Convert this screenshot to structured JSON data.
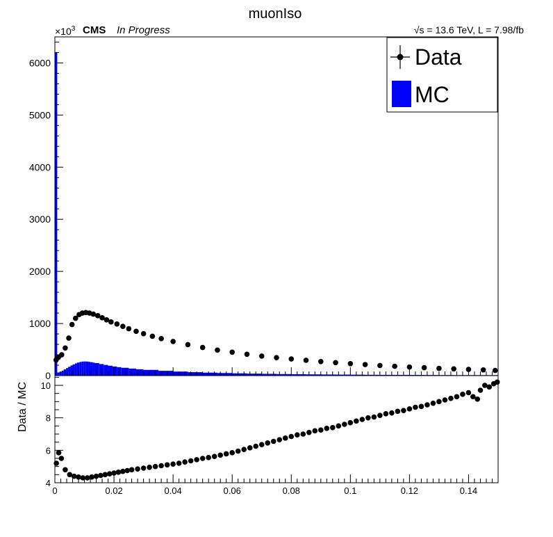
{
  "title": "muonIso",
  "header": {
    "exponent_base": "×10",
    "exponent_power": "3",
    "experiment": "CMS",
    "status": "In Progress",
    "lumi_text": "√s = 13.6 TeV, L = 7.98/fb"
  },
  "legend": {
    "entries": [
      {
        "label": "Data",
        "style": "marker",
        "color": "#000000"
      },
      {
        "label": "MC",
        "style": "fill",
        "color": "#0000ff"
      }
    ],
    "placement": "top-right"
  },
  "colors": {
    "data": "#000000",
    "mc": "#0000ff",
    "frame": "#000000"
  },
  "chart_data": [
    {
      "type": "bar",
      "panel": "main",
      "series_names": [
        "Data",
        "MC"
      ],
      "x_range": [
        0,
        0.15
      ],
      "ylim": [
        0,
        6500
      ],
      "y_scale_note": "×10^3",
      "y_ticks": [
        "0",
        "1000",
        "2000",
        "3000",
        "4000",
        "5000",
        "6000"
      ],
      "grid": false,
      "data_points": [
        [
          0.0004,
          300
        ],
        [
          0.0012,
          350
        ],
        [
          0.0023,
          400
        ],
        [
          0.0035,
          530
        ],
        [
          0.0047,
          720
        ],
        [
          0.0058,
          980
        ],
        [
          0.007,
          1100
        ],
        [
          0.0082,
          1170
        ],
        [
          0.0093,
          1200
        ],
        [
          0.0105,
          1210
        ],
        [
          0.0117,
          1200
        ],
        [
          0.013,
          1180
        ],
        [
          0.0145,
          1150
        ],
        [
          0.016,
          1110
        ],
        [
          0.0175,
          1070
        ],
        [
          0.019,
          1030
        ],
        [
          0.021,
          990
        ],
        [
          0.023,
          945
        ],
        [
          0.025,
          900
        ],
        [
          0.0275,
          850
        ],
        [
          0.03,
          805
        ],
        [
          0.033,
          755
        ],
        [
          0.036,
          710
        ],
        [
          0.04,
          655
        ],
        [
          0.045,
          595
        ],
        [
          0.05,
          540
        ],
        [
          0.055,
          490
        ],
        [
          0.06,
          450
        ],
        [
          0.065,
          410
        ],
        [
          0.07,
          375
        ],
        [
          0.075,
          345
        ],
        [
          0.08,
          320
        ],
        [
          0.085,
          295
        ],
        [
          0.09,
          270
        ],
        [
          0.095,
          250
        ],
        [
          0.1,
          230
        ],
        [
          0.105,
          212
        ],
        [
          0.11,
          195
        ],
        [
          0.115,
          180
        ],
        [
          0.12,
          165
        ],
        [
          0.125,
          152
        ],
        [
          0.13,
          140
        ],
        [
          0.135,
          130
        ],
        [
          0.14,
          120
        ],
        [
          0.145,
          110
        ],
        [
          0.149,
          100
        ]
      ],
      "mc_bins": [
        [
          0.0,
          6200
        ],
        [
          0.0008,
          60
        ],
        [
          0.0015,
          75
        ],
        [
          0.0023,
          95
        ],
        [
          0.003,
          120
        ],
        [
          0.0038,
          145
        ],
        [
          0.0045,
          170
        ],
        [
          0.0053,
          195
        ],
        [
          0.006,
          215
        ],
        [
          0.0068,
          235
        ],
        [
          0.0075,
          250
        ],
        [
          0.0083,
          262
        ],
        [
          0.009,
          270
        ],
        [
          0.0098,
          272
        ],
        [
          0.0105,
          270
        ],
        [
          0.0113,
          265
        ],
        [
          0.012,
          258
        ],
        [
          0.0128,
          250
        ],
        [
          0.0135,
          240
        ],
        [
          0.015,
          222
        ],
        [
          0.0165,
          205
        ],
        [
          0.018,
          190
        ],
        [
          0.0195,
          175
        ],
        [
          0.021,
          162
        ],
        [
          0.0225,
          150
        ],
        [
          0.025,
          135
        ],
        [
          0.0275,
          122
        ],
        [
          0.03,
          110
        ],
        [
          0.035,
          92
        ],
        [
          0.04,
          78
        ],
        [
          0.045,
          66
        ],
        [
          0.05,
          57
        ],
        [
          0.055,
          50
        ],
        [
          0.06,
          44
        ],
        [
          0.065,
          38
        ],
        [
          0.07,
          34
        ],
        [
          0.075,
          30
        ],
        [
          0.08,
          27
        ],
        [
          0.085,
          24
        ],
        [
          0.09,
          22
        ],
        [
          0.095,
          20
        ],
        [
          0.1,
          18
        ],
        [
          0.105,
          16
        ],
        [
          0.11,
          15
        ],
        [
          0.115,
          14
        ],
        [
          0.12,
          13
        ],
        [
          0.125,
          12
        ],
        [
          0.13,
          11
        ],
        [
          0.135,
          10
        ],
        [
          0.14,
          10
        ],
        [
          0.145,
          10
        ]
      ]
    },
    {
      "type": "scatter",
      "panel": "ratio",
      "ylabel": "Data / MC",
      "xlim": [
        0,
        0.15
      ],
      "ylim": [
        4,
        10.6
      ],
      "x_ticks": [
        "0",
        "0.02",
        "0.04",
        "0.06",
        "0.08",
        "0.1",
        "0.12",
        "0.14"
      ],
      "y_ticks": [
        "4",
        "6",
        "8",
        "10"
      ],
      "grid": false,
      "points": [
        [
          0.0005,
          5.2
        ],
        [
          0.0013,
          5.85
        ],
        [
          0.0022,
          5.5
        ],
        [
          0.0035,
          4.8
        ],
        [
          0.005,
          4.5
        ],
        [
          0.0065,
          4.4
        ],
        [
          0.008,
          4.35
        ],
        [
          0.0095,
          4.3
        ],
        [
          0.011,
          4.3
        ],
        [
          0.0125,
          4.35
        ],
        [
          0.014,
          4.4
        ],
        [
          0.0155,
          4.45
        ],
        [
          0.017,
          4.5
        ],
        [
          0.0185,
          4.55
        ],
        [
          0.02,
          4.6
        ],
        [
          0.0215,
          4.65
        ],
        [
          0.023,
          4.7
        ],
        [
          0.0245,
          4.75
        ],
        [
          0.026,
          4.8
        ],
        [
          0.028,
          4.85
        ],
        [
          0.03,
          4.9
        ],
        [
          0.032,
          4.95
        ],
        [
          0.034,
          5.0
        ],
        [
          0.036,
          5.05
        ],
        [
          0.038,
          5.1
        ],
        [
          0.04,
          5.15
        ],
        [
          0.042,
          5.2
        ],
        [
          0.044,
          5.28
        ],
        [
          0.046,
          5.35
        ],
        [
          0.048,
          5.42
        ],
        [
          0.05,
          5.5
        ],
        [
          0.052,
          5.55
        ],
        [
          0.054,
          5.62
        ],
        [
          0.056,
          5.7
        ],
        [
          0.058,
          5.78
        ],
        [
          0.06,
          5.85
        ],
        [
          0.062,
          5.95
        ],
        [
          0.064,
          6.05
        ],
        [
          0.066,
          6.15
        ],
        [
          0.068,
          6.25
        ],
        [
          0.07,
          6.35
        ],
        [
          0.072,
          6.45
        ],
        [
          0.074,
          6.55
        ],
        [
          0.076,
          6.65
        ],
        [
          0.078,
          6.75
        ],
        [
          0.08,
          6.85
        ],
        [
          0.082,
          6.95
        ],
        [
          0.084,
          7.0
        ],
        [
          0.086,
          7.1
        ],
        [
          0.088,
          7.2
        ],
        [
          0.09,
          7.25
        ],
        [
          0.092,
          7.35
        ],
        [
          0.094,
          7.4
        ],
        [
          0.096,
          7.5
        ],
        [
          0.098,
          7.6
        ],
        [
          0.1,
          7.7
        ],
        [
          0.102,
          7.8
        ],
        [
          0.104,
          7.9
        ],
        [
          0.106,
          8.0
        ],
        [
          0.108,
          8.05
        ],
        [
          0.11,
          8.15
        ],
        [
          0.112,
          8.25
        ],
        [
          0.114,
          8.3
        ],
        [
          0.116,
          8.4
        ],
        [
          0.118,
          8.45
        ],
        [
          0.12,
          8.55
        ],
        [
          0.122,
          8.65
        ],
        [
          0.124,
          8.7
        ],
        [
          0.126,
          8.8
        ],
        [
          0.128,
          8.9
        ],
        [
          0.13,
          9.0
        ],
        [
          0.132,
          9.1
        ],
        [
          0.134,
          9.2
        ],
        [
          0.136,
          9.3
        ],
        [
          0.138,
          9.45
        ],
        [
          0.14,
          9.55
        ],
        [
          0.1415,
          9.3
        ],
        [
          0.143,
          9.15
        ],
        [
          0.144,
          9.7
        ],
        [
          0.1455,
          10.0
        ],
        [
          0.147,
          9.9
        ],
        [
          0.1485,
          10.1
        ],
        [
          0.1497,
          10.2
        ]
      ]
    }
  ]
}
